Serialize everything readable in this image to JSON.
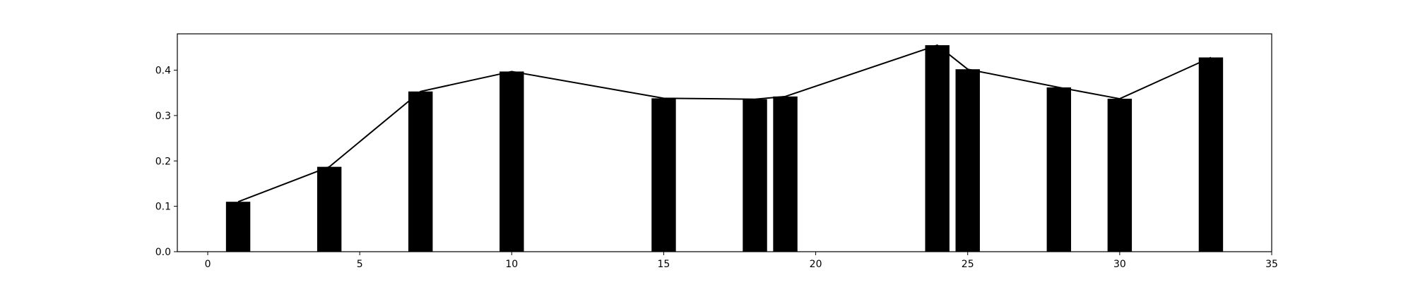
{
  "chart_data": {
    "type": "bar",
    "title": "",
    "xlabel": "",
    "ylabel": "",
    "xlim": [
      -1,
      35
    ],
    "ylim": [
      0,
      0.48
    ],
    "grid": false,
    "bar_color": "#000000",
    "line_color": "#000000",
    "bar_width": 0.8,
    "x": [
      1,
      4,
      7,
      10,
      15,
      18,
      19,
      24,
      25,
      28,
      30,
      33
    ],
    "series": [
      {
        "type": "bar",
        "values": [
          0.11,
          0.187,
          0.353,
          0.397,
          0.338,
          0.336,
          0.342,
          0.455,
          0.402,
          0.362,
          0.337,
          0.428
        ]
      },
      {
        "type": "line",
        "values": [
          0.11,
          0.187,
          0.353,
          0.397,
          0.338,
          0.336,
          0.342,
          0.455,
          0.402,
          0.362,
          0.337,
          0.428
        ]
      }
    ],
    "x_ticks": [
      0,
      5,
      10,
      15,
      20,
      25,
      30,
      35
    ],
    "x_tick_labels": [
      "0",
      "5",
      "10",
      "15",
      "20",
      "25",
      "30",
      "35"
    ],
    "y_ticks": [
      0.0,
      0.1,
      0.2,
      0.3,
      0.4
    ],
    "y_tick_labels": [
      "0.0",
      "0.1",
      "0.2",
      "0.3",
      "0.4"
    ]
  }
}
